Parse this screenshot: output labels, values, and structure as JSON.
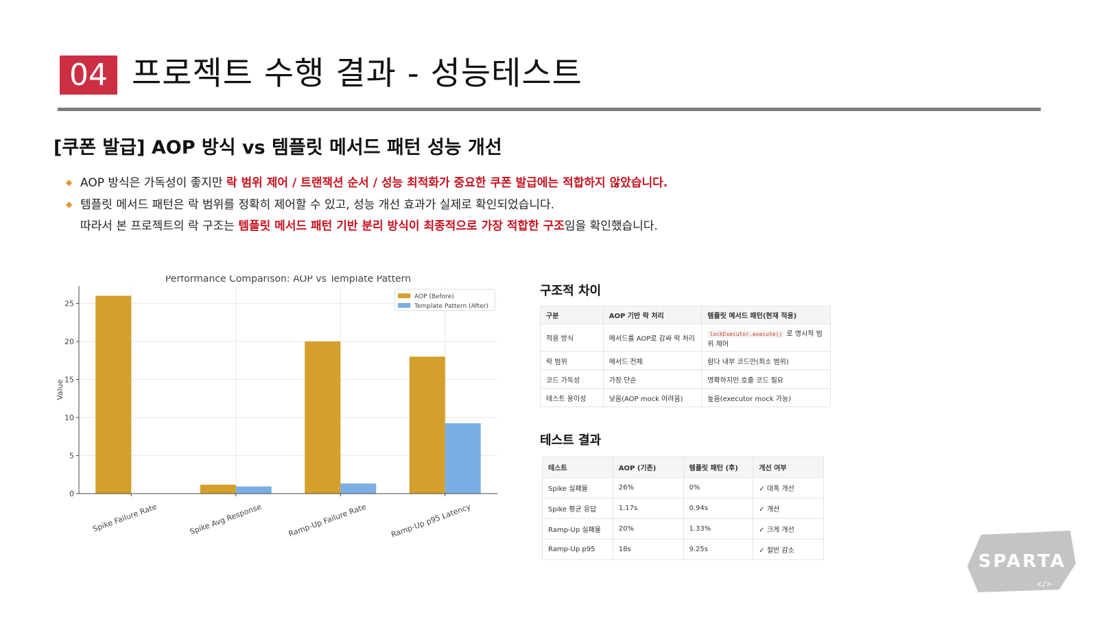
{
  "header": {
    "number": "04",
    "title": "프로젝트 수행 결과 - 성능테스트"
  },
  "section": {
    "title": "[쿠폰 발급] AOP 방식 vs 템플릿 메서드 패턴 성능 개선"
  },
  "bullets": [
    {
      "marker": "◆",
      "plain": "AOP 방식은 가독성이 좋지만 ",
      "highlight": "락 범위 제어 / 트랜잭션 순서 / 성능 최적화가 중요한 쿠폰 발급에는 적합하지 않았습니다."
    },
    {
      "marker": "◆",
      "plain": "템플릿 메서드 패턴은 락 범위를 정확히 제어할 수 있고, 성능 개선 효과가 실제로 확인되었습니다."
    }
  ],
  "conclusion": {
    "before": "따라서 본 프로젝트의 락 구조는 ",
    "highlight": "템플릿 메서드 패턴 기반 분리 방식이 최종적으로 가장 적합한 구조",
    "after": "임을 확인했습니다."
  },
  "chart_data": {
    "type": "bar",
    "title": "Performance Comparison: AOP vs Template Pattern",
    "xlabel": "",
    "ylabel": "Value",
    "categories": [
      "Spike Failure Rate",
      "Spike Avg Response",
      "Ramp-Up Failure Rate",
      "Ramp-Up p95 Latency"
    ],
    "series": [
      {
        "name": "AOP (Before)",
        "values": [
          26,
          1.17,
          20,
          18
        ],
        "color": "#d49f2a"
      },
      {
        "name": "Template Pattern (After)",
        "values": [
          0,
          0.94,
          1.33,
          9.25
        ],
        "color": "#7aaee3"
      }
    ],
    "ylim": [
      0,
      27.3
    ],
    "yticks": [
      "0",
      "5",
      "10",
      "15",
      "20",
      "25"
    ],
    "grid": true,
    "legend": "top-right"
  },
  "structure_table": {
    "title": "구조적 차이",
    "headers": [
      "구분",
      "AOP 기반 락 처리",
      "템플릿 메서드 패턴(현재 적용)"
    ],
    "rows": [
      {
        "c1": "적용 방식",
        "c2": "메서드를 AOP로 감싸 락 처리",
        "code": "lockExecutor.execute()",
        "c3": " 로 명시적 범위 제어"
      },
      {
        "c1": "락 범위",
        "c2": "메서드 전체",
        "c3": "람다 내부 코드만(최소 범위)"
      },
      {
        "c1": "코드 가독성",
        "c2": "가장 단순",
        "c3": "명확하지만 호출 코드 필요"
      },
      {
        "c1": "테스트 용이성",
        "c2": "낮음(AOP mock 어려움)",
        "c3": "높음(executor mock 가능)"
      }
    ]
  },
  "results_table": {
    "title": "테스트 결과",
    "headers": [
      "테스트",
      "AOP (기존)",
      "템플릿 패턴 (후)",
      "개선 여부"
    ],
    "rows": [
      [
        "Spike 실패율",
        "26%",
        "0%",
        "✓ 대폭 개선"
      ],
      [
        "Spike 평균 응답",
        "1.17s",
        "0.94s",
        "✓ 개선"
      ],
      [
        "Ramp-Up 실패율",
        "20%",
        "1.33%",
        "✓ 크게 개선"
      ],
      [
        "Ramp-Up p95",
        "18s",
        "9.25s",
        "✓ 절반 감소"
      ]
    ]
  },
  "logo": {
    "text": "SPARTA",
    "subtext": "</>",
    "color": "#bdbdbd"
  }
}
